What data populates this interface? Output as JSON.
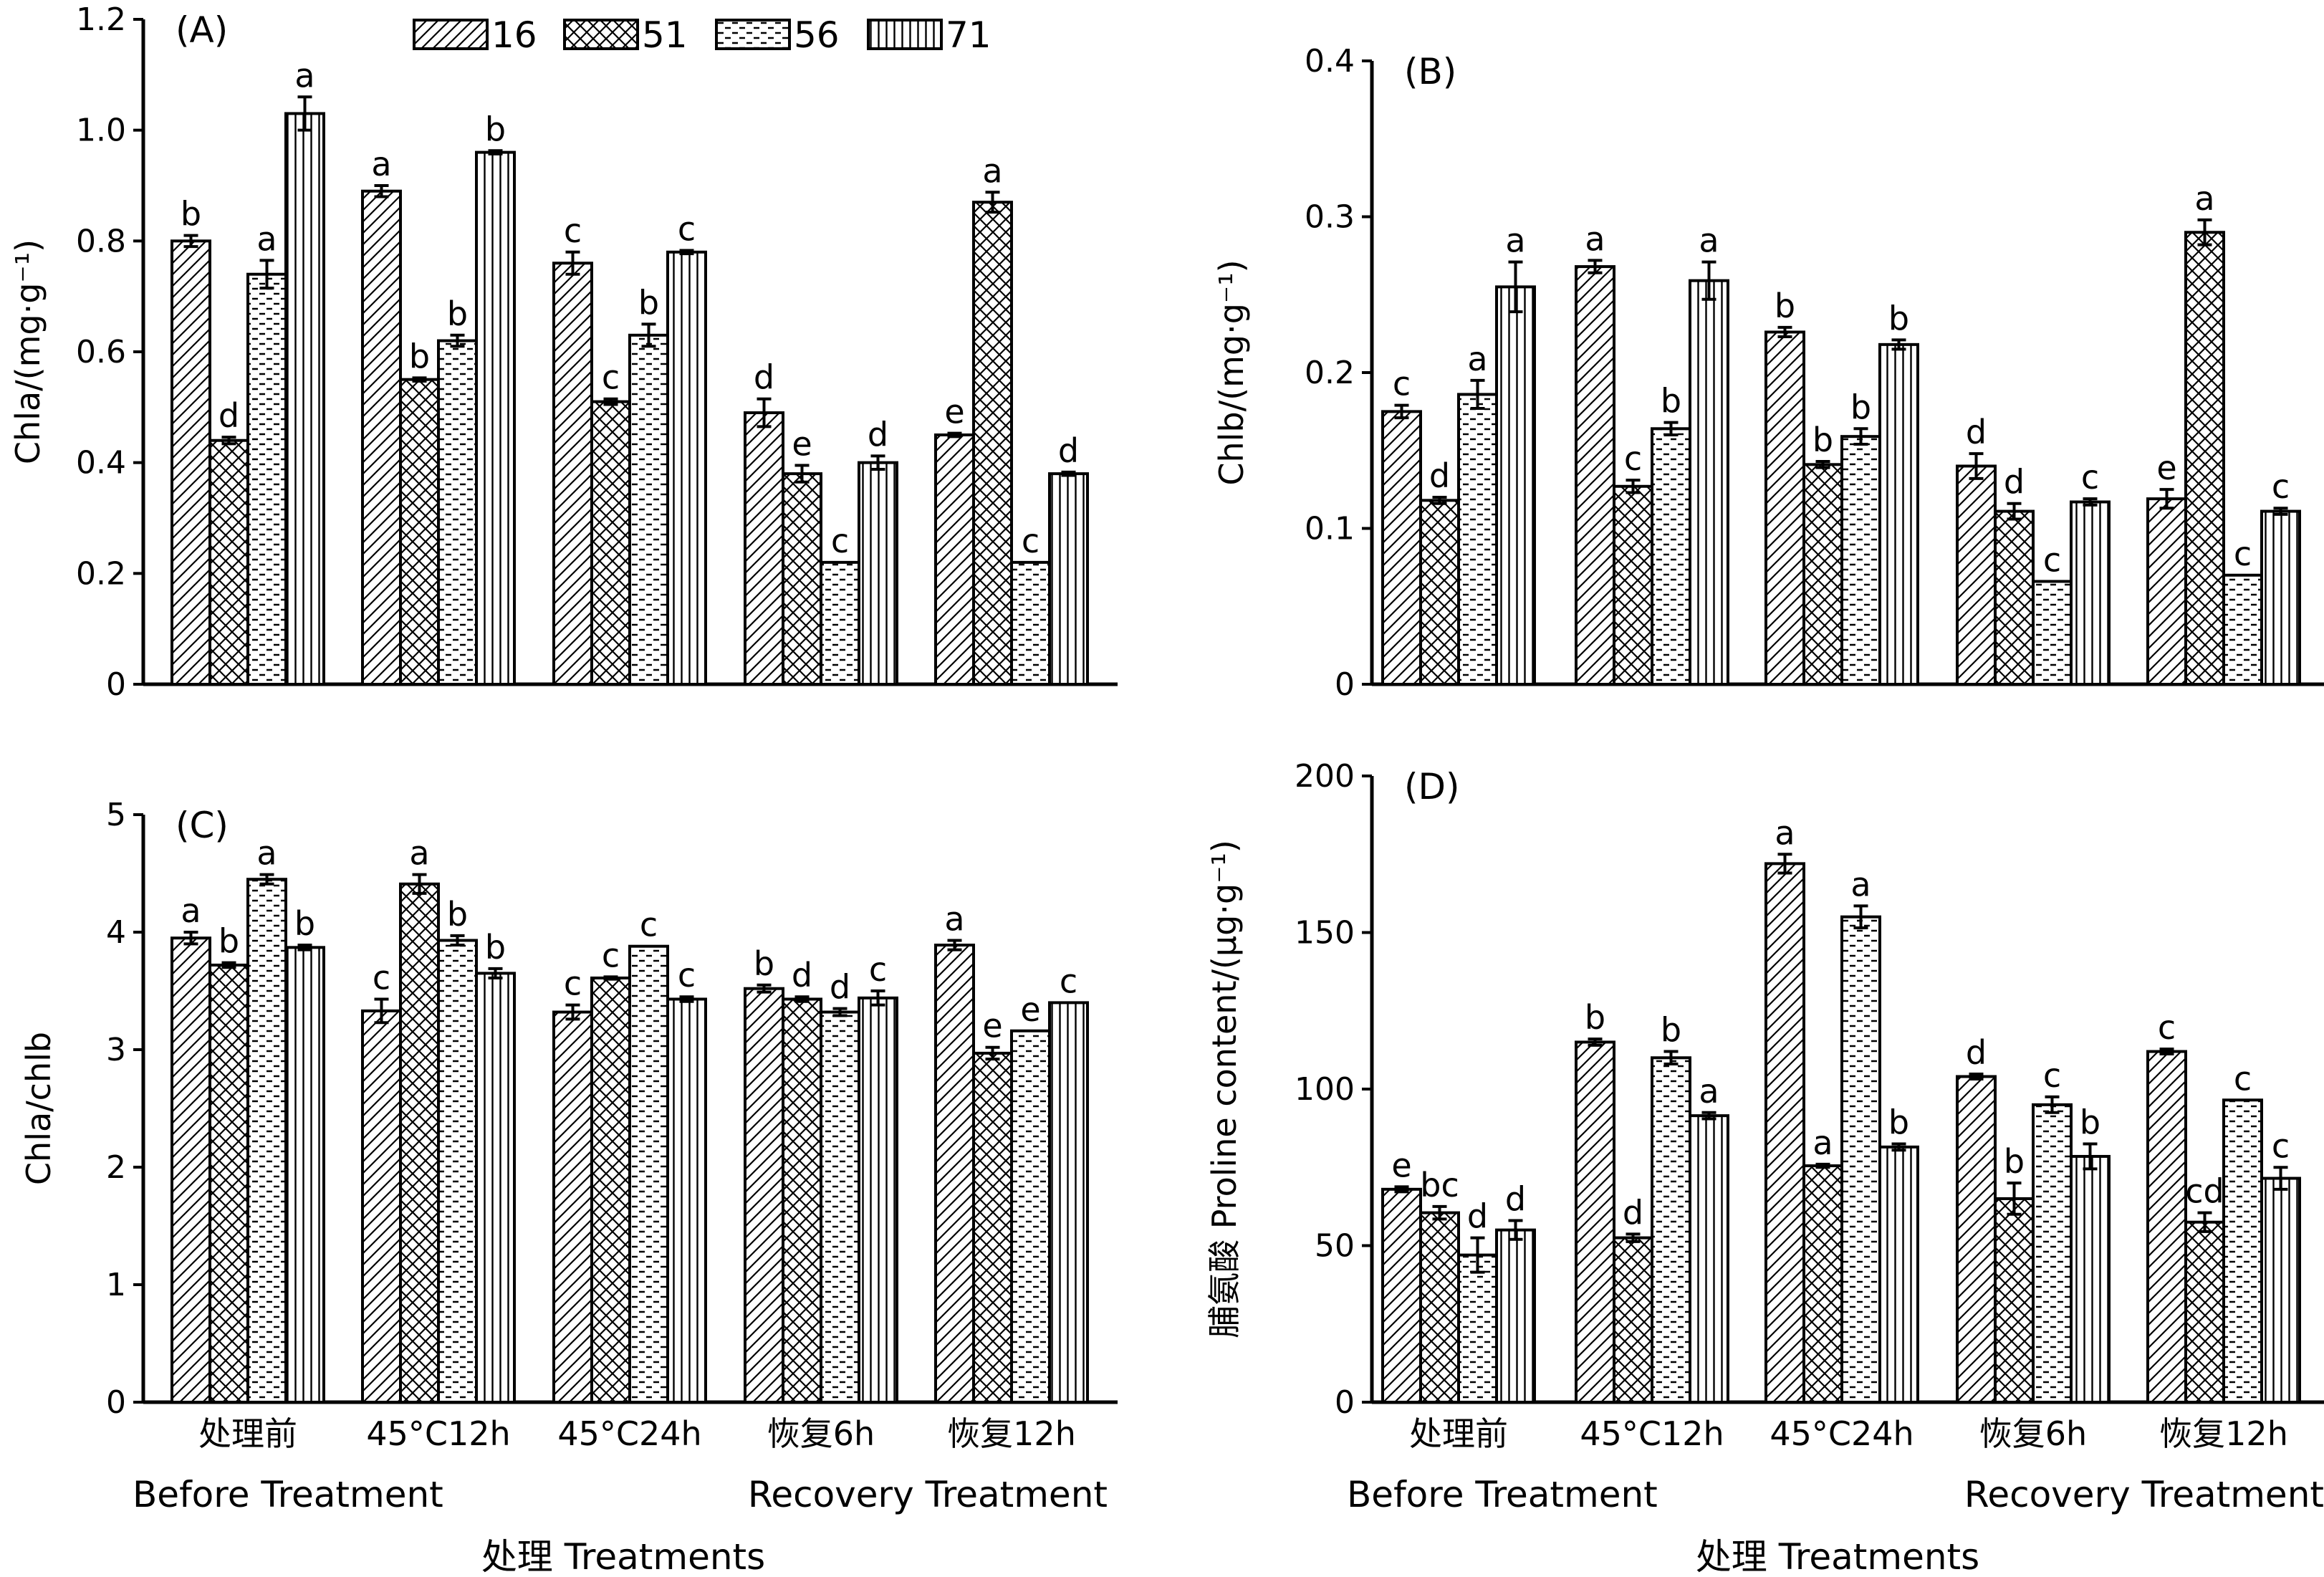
{
  "legend": {
    "entries": [
      {
        "label": "16",
        "pattern": "diag"
      },
      {
        "label": "51",
        "pattern": "cross"
      },
      {
        "label": "56",
        "pattern": "dash"
      },
      {
        "label": "71",
        "pattern": "vert"
      }
    ]
  },
  "x_categories": [
    "处理前",
    "45°C12h",
    "45°C24h",
    "恢复6h",
    "恢复12h"
  ],
  "x_groups": [
    "Before Treatment",
    "Recovery Treatment"
  ],
  "x_axis_title": "处理 Treatments",
  "chart_data": [
    {
      "id": "A",
      "panel_label": "(A)",
      "type": "bar",
      "ylabel": "Chla/(mg·g⁻¹)",
      "ylim": [
        0,
        1.2
      ],
      "yticks": [
        "0",
        "0.2",
        "0.4",
        "0.6",
        "0.8",
        "1.0",
        "1.2"
      ],
      "categories": [
        "处理前",
        "45°C12h",
        "45°C24h",
        "恢复6h",
        "恢复12h"
      ],
      "series": [
        {
          "name": "16",
          "values": [
            0.8,
            0.89,
            0.76,
            0.49,
            0.45
          ],
          "errors": [
            0.01,
            0.01,
            0.02,
            0.025,
            0.003
          ],
          "letters": [
            "b",
            "a",
            "c",
            "d",
            "e"
          ]
        },
        {
          "name": "51",
          "values": [
            0.44,
            0.55,
            0.51,
            0.38,
            0.87
          ],
          "errors": [
            0.006,
            0.003,
            0.005,
            0.015,
            0.018
          ],
          "letters": [
            "d",
            "b",
            "c",
            "e",
            "a"
          ]
        },
        {
          "name": "56",
          "values": [
            0.74,
            0.62,
            0.63,
            0.22,
            0.22
          ],
          "errors": [
            0.025,
            0.01,
            0.02,
            0.0,
            0.0
          ],
          "letters": [
            "a",
            "b",
            "b",
            "c",
            "c"
          ]
        },
        {
          "name": "71",
          "values": [
            1.03,
            0.96,
            0.78,
            0.4,
            0.38
          ],
          "errors": [
            0.03,
            0.003,
            0.003,
            0.012,
            0.003
          ],
          "letters": [
            "a",
            "b",
            "c",
            "d",
            "d"
          ]
        }
      ]
    },
    {
      "id": "B",
      "panel_label": "(B)",
      "type": "bar",
      "ylabel": "Chlb/(mg·g⁻¹)",
      "ylim": [
        0,
        0.4
      ],
      "yticks": [
        "0",
        "0.1",
        "0.2",
        "0.3",
        "0.4"
      ],
      "categories": [
        "处理前",
        "45°C12h",
        "45°C24h",
        "恢复6h",
        "恢复12h"
      ],
      "series": [
        {
          "name": "16",
          "values": [
            0.175,
            0.268,
            0.226,
            0.14,
            0.119
          ],
          "errors": [
            0.004,
            0.004,
            0.003,
            0.008,
            0.006
          ],
          "letters": [
            "c",
            "a",
            "b",
            "d",
            "e"
          ]
        },
        {
          "name": "51",
          "values": [
            0.118,
            0.127,
            0.141,
            0.111,
            0.29
          ],
          "errors": [
            0.002,
            0.004,
            0.002,
            0.005,
            0.008
          ],
          "letters": [
            "d",
            "c",
            "b",
            "d",
            "a"
          ]
        },
        {
          "name": "56",
          "values": [
            0.186,
            0.164,
            0.159,
            0.066,
            0.07
          ],
          "errors": [
            0.009,
            0.004,
            0.005,
            0.0,
            0.0
          ],
          "letters": [
            "a",
            "b",
            "b",
            "c",
            "c"
          ]
        },
        {
          "name": "71",
          "values": [
            0.255,
            0.259,
            0.218,
            0.117,
            0.111
          ],
          "errors": [
            0.016,
            0.012,
            0.003,
            0.002,
            0.002
          ],
          "letters": [
            "a",
            "a",
            "b",
            "c",
            "c"
          ]
        }
      ]
    },
    {
      "id": "C",
      "panel_label": "(C)",
      "type": "bar",
      "ylabel": "Chla/chlb",
      "ylim": [
        0,
        5
      ],
      "yticks": [
        "0",
        "1",
        "2",
        "3",
        "4",
        "5"
      ],
      "categories": [
        "处理前",
        "45°C12h",
        "45°C24h",
        "恢复6h",
        "恢复12h"
      ],
      "series": [
        {
          "name": "16",
          "values": [
            3.95,
            3.33,
            3.32,
            3.52,
            3.89
          ],
          "errors": [
            0.05,
            0.1,
            0.06,
            0.03,
            0.04
          ],
          "letters": [
            "a",
            "c",
            "c",
            "b",
            "a"
          ]
        },
        {
          "name": "51",
          "values": [
            3.72,
            4.41,
            3.61,
            3.43,
            2.97
          ],
          "errors": [
            0.02,
            0.08,
            0.01,
            0.02,
            0.05
          ],
          "letters": [
            "b",
            "a",
            "c",
            "d",
            "e"
          ]
        },
        {
          "name": "56",
          "values": [
            4.45,
            3.93,
            3.88,
            3.32,
            3.16
          ],
          "errors": [
            0.04,
            0.04,
            0.0,
            0.03,
            0.0
          ],
          "letters": [
            "a",
            "b",
            "c",
            "d",
            "e"
          ]
        },
        {
          "name": "71",
          "values": [
            3.87,
            3.65,
            3.43,
            3.44,
            3.4
          ],
          "errors": [
            0.02,
            0.04,
            0.02,
            0.06,
            0.0
          ],
          "letters": [
            "b",
            "b",
            "c",
            "c",
            "c"
          ]
        }
      ]
    },
    {
      "id": "D",
      "panel_label": "(D)",
      "type": "bar",
      "ylabel": "脯氨酸 Proline content/(μg·g⁻¹)",
      "ylim": [
        0,
        200
      ],
      "yticks": [
        "0",
        "50",
        "100",
        "150",
        "200"
      ],
      "categories": [
        "处理前",
        "45°C12h",
        "45°C24h",
        "恢复6h",
        "恢复12h"
      ],
      "series": [
        {
          "name": "16",
          "values": [
            68,
            115,
            172,
            104,
            112
          ],
          "errors": [
            0.8,
            1.0,
            3.0,
            0.8,
            0.8
          ],
          "letters": [
            "e",
            "b",
            "a",
            "d",
            "c"
          ]
        },
        {
          "name": "51",
          "values": [
            60.5,
            52.5,
            75.5,
            65,
            57.5
          ],
          "errors": [
            2.0,
            1.2,
            0.5,
            5.0,
            3.0
          ],
          "letters": [
            "bc",
            "d",
            "a",
            "b",
            "cd"
          ]
        },
        {
          "name": "56",
          "values": [
            47,
            110,
            155,
            95,
            96.5
          ],
          "errors": [
            5.5,
            2.0,
            3.5,
            2.5,
            0.0
          ],
          "letters": [
            "d",
            "b",
            "a",
            "c",
            "c"
          ]
        },
        {
          "name": "71",
          "values": [
            55,
            91.5,
            81.5,
            78.5,
            71.5
          ],
          "errors": [
            3.0,
            1.0,
            1.0,
            4.0,
            3.5
          ],
          "letters": [
            "d",
            "a",
            "b",
            "b",
            "c"
          ]
        }
      ]
    }
  ]
}
